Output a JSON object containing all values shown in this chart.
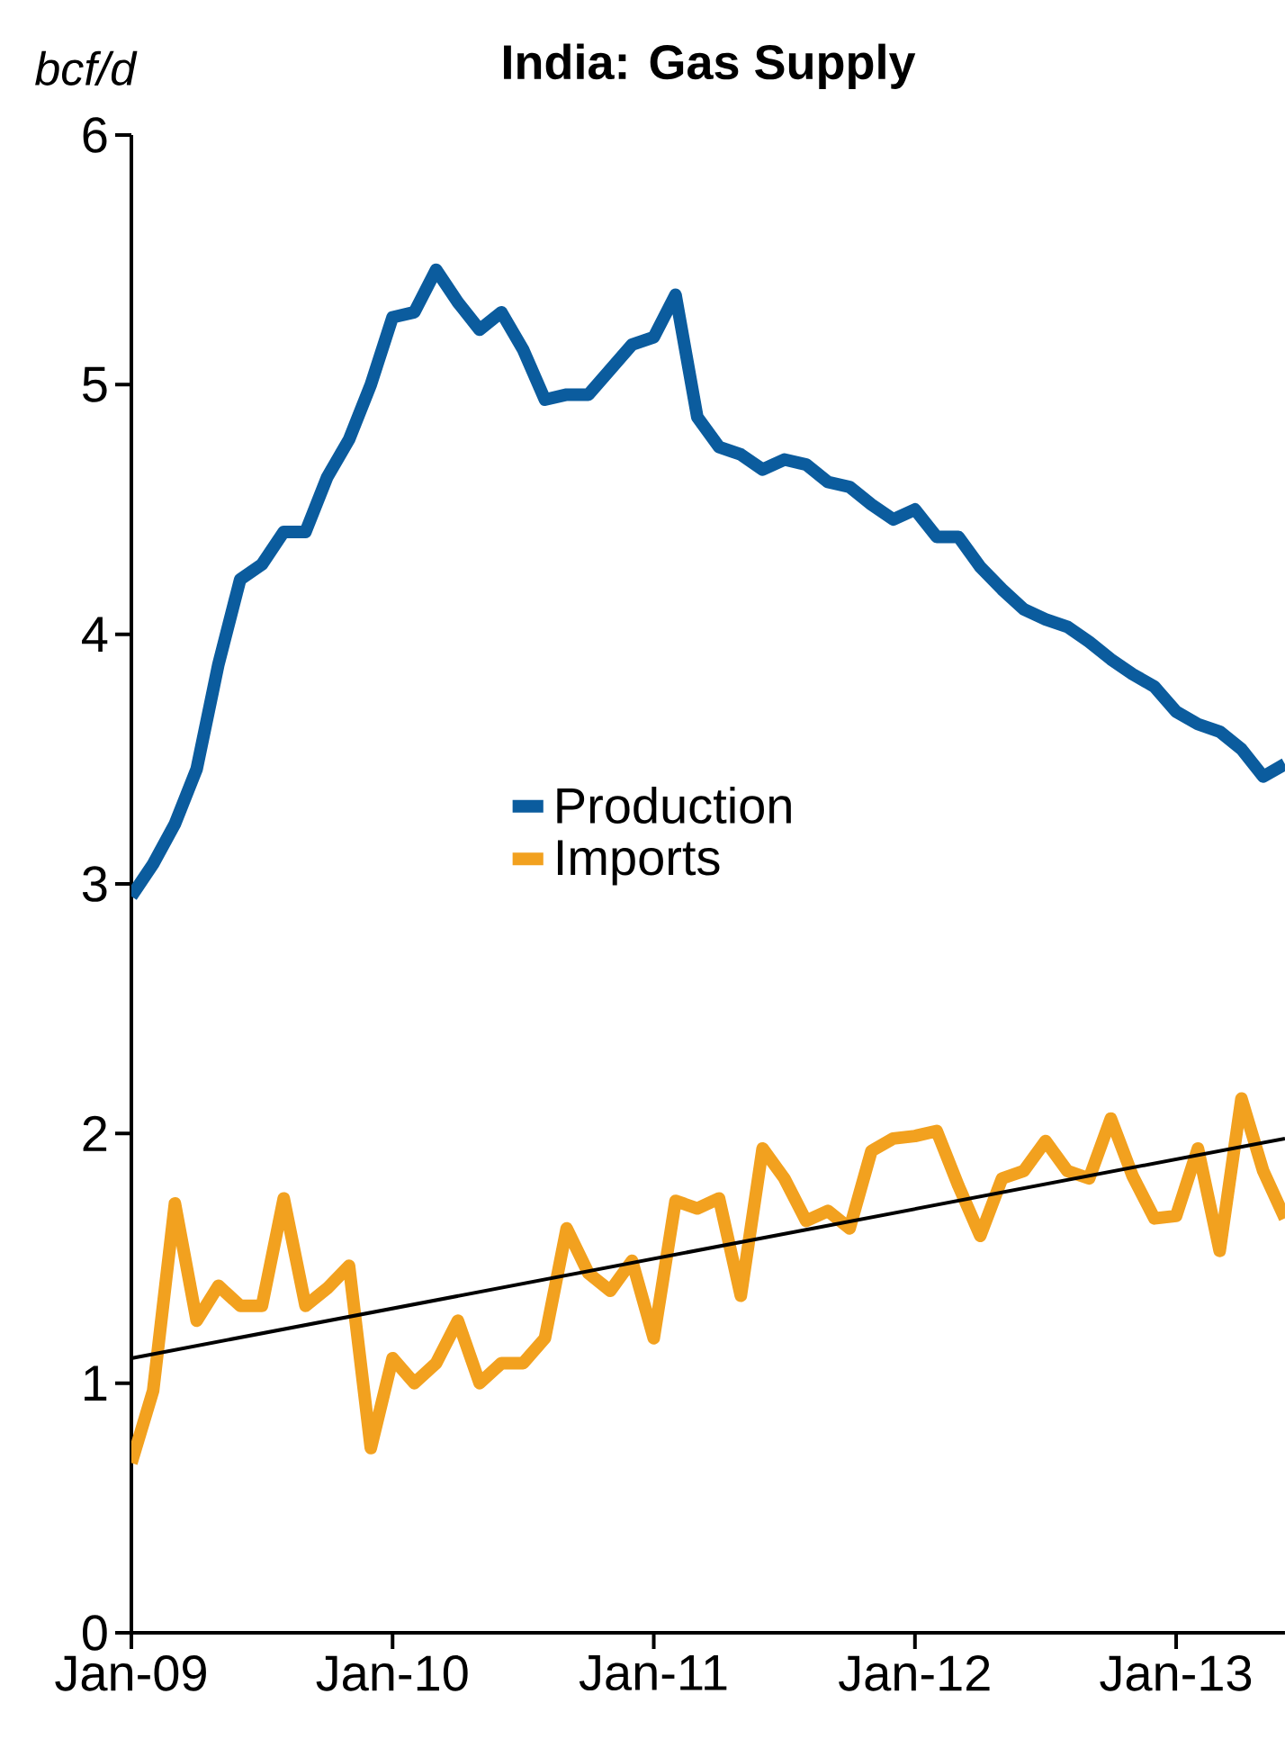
{
  "chart_data": {
    "type": "line",
    "title": "India: Gas Supply",
    "ylabel": "bcf/d",
    "x": [
      "2009-01",
      "2009-02",
      "2009-03",
      "2009-04",
      "2009-05",
      "2009-06",
      "2009-07",
      "2009-08",
      "2009-09",
      "2009-10",
      "2009-11",
      "2009-12",
      "2010-01",
      "2010-02",
      "2010-03",
      "2010-04",
      "2010-05",
      "2010-06",
      "2010-07",
      "2010-08",
      "2010-09",
      "2010-10",
      "2010-11",
      "2010-12",
      "2011-01",
      "2011-02",
      "2011-03",
      "2011-04",
      "2011-05",
      "2011-06",
      "2011-07",
      "2011-08",
      "2011-09",
      "2011-10",
      "2011-11",
      "2011-12",
      "2012-01",
      "2012-02",
      "2012-03",
      "2012-04",
      "2012-05",
      "2012-06",
      "2012-07",
      "2012-08",
      "2012-09",
      "2012-10",
      "2012-11",
      "2012-12",
      "2013-01",
      "2013-02",
      "2013-03",
      "2013-04",
      "2013-05",
      "2013-06"
    ],
    "series": [
      {
        "name": "Production",
        "color": "#0b5c9e",
        "values": [
          2.95,
          3.08,
          3.24,
          3.46,
          3.88,
          4.22,
          4.28,
          4.41,
          4.41,
          4.63,
          4.78,
          5.0,
          5.27,
          5.29,
          5.46,
          5.33,
          5.22,
          5.29,
          5.14,
          4.94,
          4.96,
          4.96,
          5.06,
          5.16,
          5.19,
          5.36,
          4.87,
          4.75,
          4.72,
          4.66,
          4.7,
          4.68,
          4.61,
          4.59,
          4.52,
          4.46,
          4.5,
          4.39,
          4.39,
          4.27,
          4.18,
          4.1,
          4.06,
          4.03,
          3.97,
          3.9,
          3.84,
          3.79,
          3.69,
          3.64,
          3.61,
          3.54,
          3.43,
          3.48
        ]
      },
      {
        "name": "Imports",
        "color": "#f2a11f",
        "values": [
          0.68,
          0.97,
          1.72,
          1.25,
          1.39,
          1.31,
          1.31,
          1.74,
          1.31,
          1.38,
          1.47,
          0.74,
          1.1,
          1.0,
          1.08,
          1.25,
          1.0,
          1.08,
          1.08,
          1.18,
          1.62,
          1.44,
          1.37,
          1.49,
          1.18,
          1.73,
          1.7,
          1.74,
          1.35,
          1.94,
          1.82,
          1.65,
          1.69,
          1.62,
          1.93,
          1.98,
          1.99,
          2.01,
          1.79,
          1.59,
          1.82,
          1.85,
          1.97,
          1.85,
          1.82,
          2.06,
          1.83,
          1.66,
          1.67,
          1.94,
          1.53,
          2.14,
          1.85,
          1.66
        ]
      },
      {
        "type": "line",
        "color": "#000000",
        "x": [
          "2009-01",
          "2013-06"
        ],
        "values": [
          1.1,
          1.98
        ]
      }
    ],
    "xlim": [
      "2009-01",
      "2013-06"
    ],
    "xticks": [
      {
        "value": "2009-01",
        "label": "Jan-09"
      },
      {
        "value": "2010-01",
        "label": "Jan-10"
      },
      {
        "value": "2011-01",
        "label": "Jan-11"
      },
      {
        "value": "2012-01",
        "label": "Jan-12"
      },
      {
        "value": "2013-01",
        "label": "Jan-13"
      }
    ],
    "ylim": [
      0,
      6
    ],
    "yticks": [
      0,
      1,
      2,
      3,
      4,
      5,
      6
    ],
    "grid": false,
    "legend": "center",
    "marker": "none",
    "line_style": "solid"
  }
}
